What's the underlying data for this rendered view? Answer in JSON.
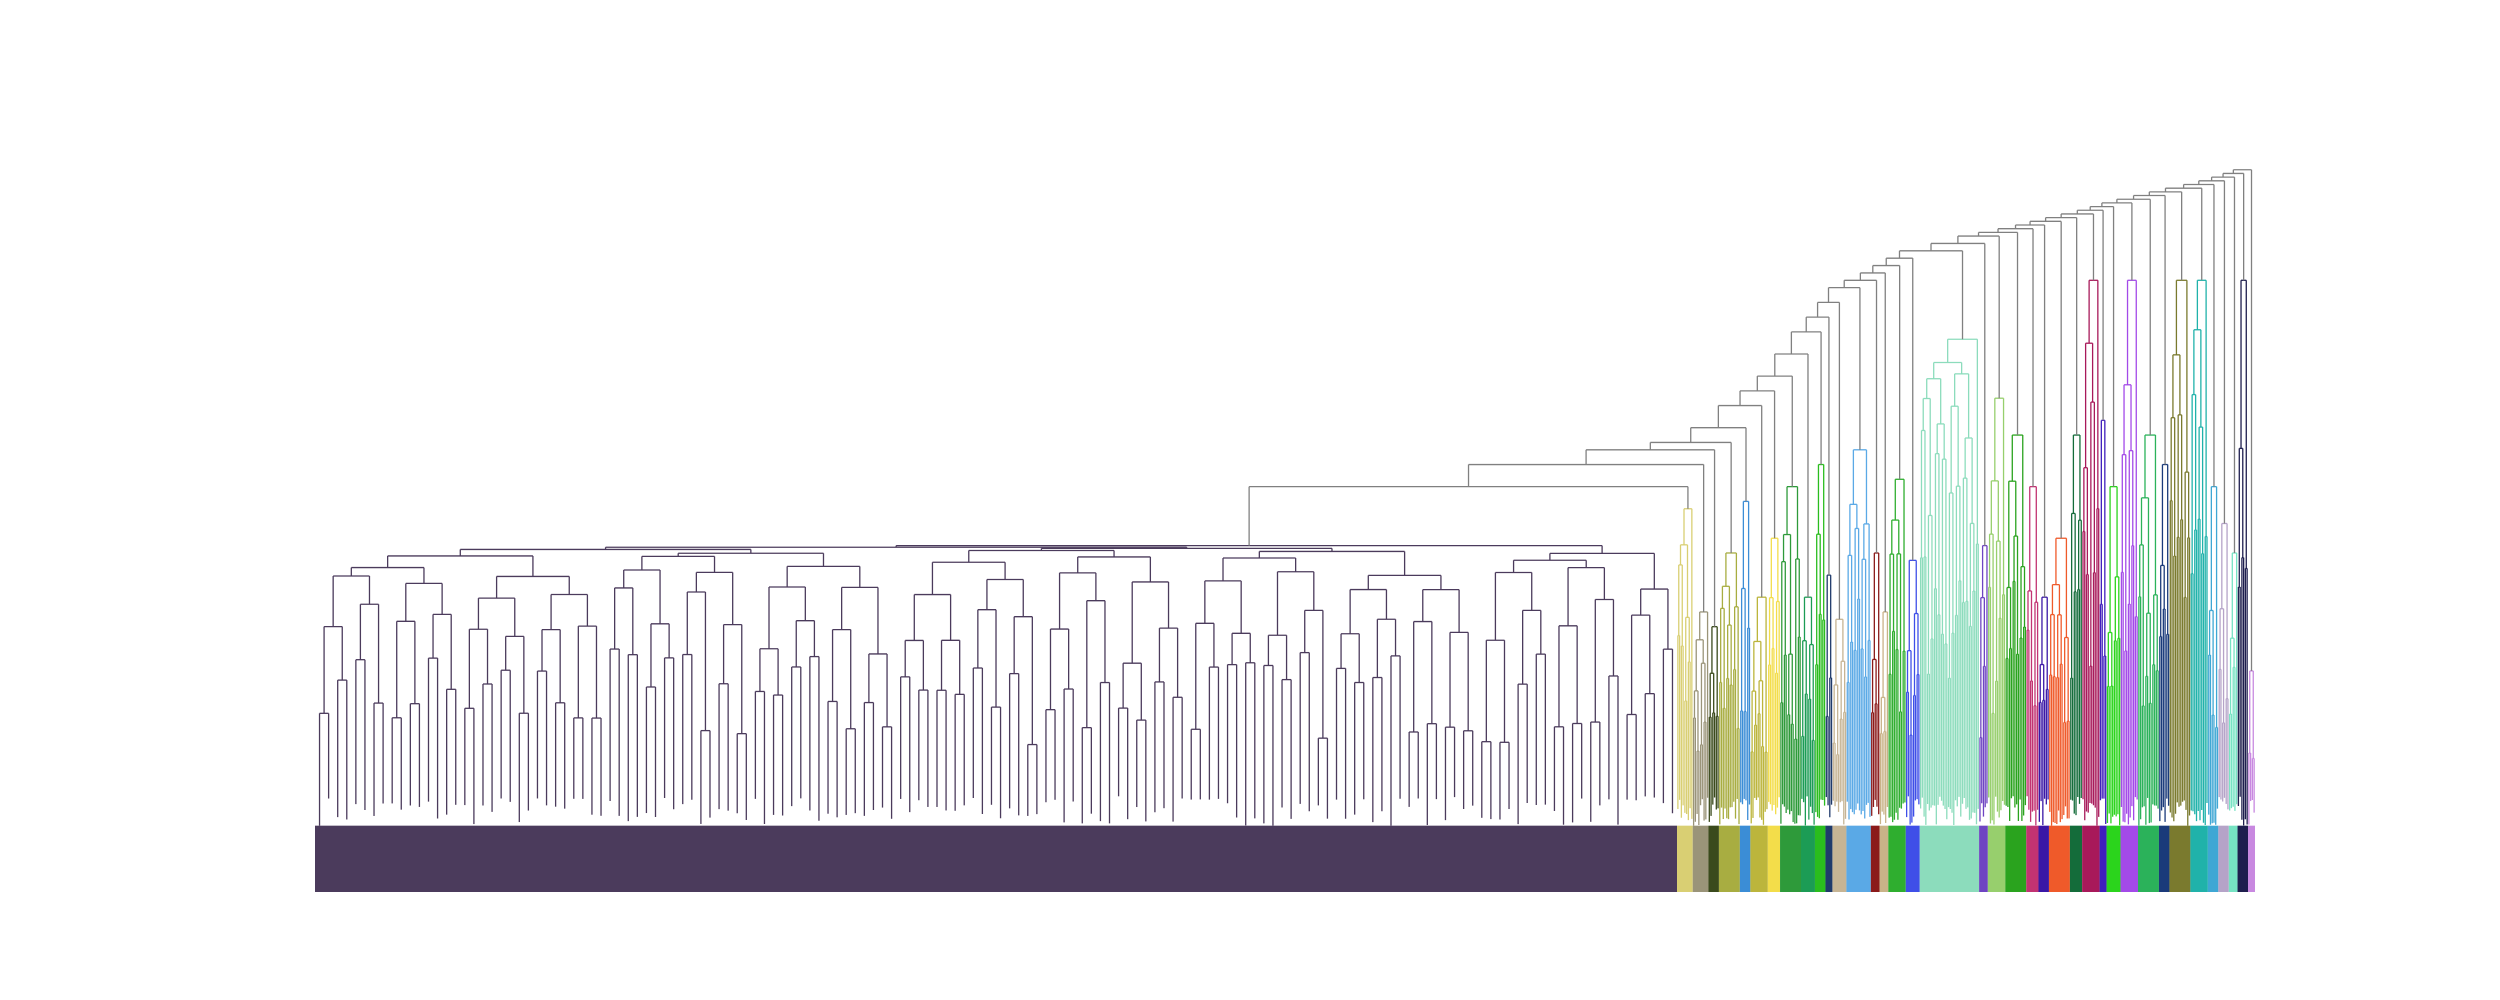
{
  "figure": {
    "type": "dendrogram",
    "orientation": "top-down",
    "axes_visible": false,
    "background": "#ffffff",
    "above_threshold_color": "#808080",
    "clusters": [
      {
        "color": "#4b3b5c",
        "leaves": 780,
        "merge_height": 0.47
      },
      {
        "color": "#d9cf73",
        "leaves": 9,
        "merge_height": 0.52
      },
      {
        "color": "#9a9479",
        "leaves": 9,
        "merge_height": 0.38
      },
      {
        "color": "#3a4a1c",
        "leaves": 6,
        "merge_height": 0.36
      },
      {
        "color": "#a8ad41",
        "leaves": 12,
        "merge_height": 0.46
      },
      {
        "color": "#3b8dd6",
        "leaves": 6,
        "merge_height": 0.53
      },
      {
        "color": "#bcb53c",
        "leaves": 10,
        "merge_height": 0.4
      },
      {
        "color": "#f3dd4a",
        "leaves": 7,
        "merge_height": 0.48
      },
      {
        "color": "#2e9a3a",
        "leaves": 12,
        "merge_height": 0.55
      },
      {
        "color": "#1c9c55",
        "leaves": 8,
        "merge_height": 0.4
      },
      {
        "color": "#2abd1e",
        "leaves": 6,
        "merge_height": 0.58
      },
      {
        "color": "#1f3a6b",
        "leaves": 4,
        "merge_height": 0.43
      },
      {
        "color": "#c6b494",
        "leaves": 8,
        "merge_height": 0.37
      },
      {
        "color": "#5aa9e6",
        "leaves": 14,
        "merge_height": 0.6
      },
      {
        "color": "#8b1a1a",
        "leaves": 5,
        "merge_height": 0.46
      },
      {
        "color": "#c9b388",
        "leaves": 5,
        "merge_height": 0.38
      },
      {
        "color": "#2fae2f",
        "leaves": 10,
        "merge_height": 0.56
      },
      {
        "color": "#3f4fe8",
        "leaves": 8,
        "merge_height": 0.45
      },
      {
        "color": "#8cdcbc",
        "leaves": 34,
        "merge_height": 0.75
      },
      {
        "color": "#6e44c2",
        "leaves": 5,
        "merge_height": 0.47
      },
      {
        "color": "#97cf6d",
        "leaves": 10,
        "merge_height": 0.67
      },
      {
        "color": "#2aa31e",
        "leaves": 12,
        "merge_height": 0.62
      },
      {
        "color": "#c23372",
        "leaves": 7,
        "merge_height": 0.55
      },
      {
        "color": "#3a17a6",
        "leaves": 6,
        "merge_height": 0.4
      },
      {
        "color": "#ef5a2a",
        "leaves": 12,
        "merge_height": 0.48
      },
      {
        "color": "#146c3a",
        "leaves": 7,
        "merge_height": 0.62
      },
      {
        "color": "#a8195a",
        "leaves": 10,
        "merge_height": 0.83
      },
      {
        "color": "#3f1fbd",
        "leaves": 4,
        "merge_height": 0.64
      },
      {
        "color": "#2bd41c",
        "leaves": 8,
        "merge_height": 0.55
      },
      {
        "color": "#a34ae8",
        "leaves": 10,
        "merge_height": 0.83
      },
      {
        "color": "#2bb25a",
        "leaves": 12,
        "merge_height": 0.62
      },
      {
        "color": "#1a3a7a",
        "leaves": 6,
        "merge_height": 0.58
      },
      {
        "color": "#7a7a2e",
        "leaves": 12,
        "merge_height": 0.83
      },
      {
        "color": "#20b2aa",
        "leaves": 10,
        "merge_height": 0.83
      },
      {
        "color": "#3fa7d4",
        "leaves": 6,
        "merge_height": 0.55
      },
      {
        "color": "#b5a3c8",
        "leaves": 6,
        "merge_height": 0.5
      },
      {
        "color": "#76e3c3",
        "leaves": 5,
        "merge_height": 0.46
      },
      {
        "color": "#1e1e4e",
        "leaves": 6,
        "merge_height": 0.83
      },
      {
        "color": "#c888e0",
        "leaves": 4,
        "merge_height": 0.3
      }
    ]
  }
}
